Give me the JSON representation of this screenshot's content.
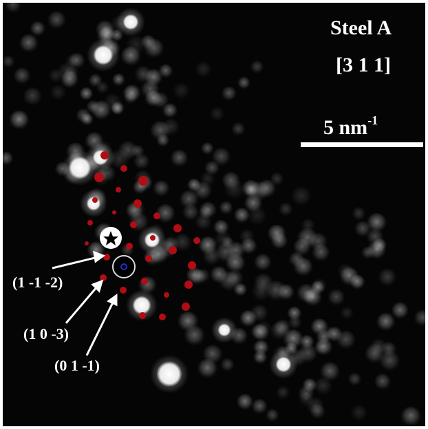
{
  "figure": {
    "sample_name": "Steel A",
    "zone_axis": "[3 1 1]",
    "scale_value": "5 nm",
    "scale_exponent": "-1",
    "plane_labels": [
      "(1 -1 -2)",
      "(1 0 -3)",
      "(0 1 -1)"
    ]
  },
  "colors": {
    "background": "#050505",
    "matrix_spot": "#8c8c8c",
    "marker_red": "#b10d14",
    "transmitted_beam": "#000000",
    "beam_center": "#1f2fd0",
    "text": "#ffffff"
  },
  "icons": {
    "star_marker": "star-icon"
  }
}
